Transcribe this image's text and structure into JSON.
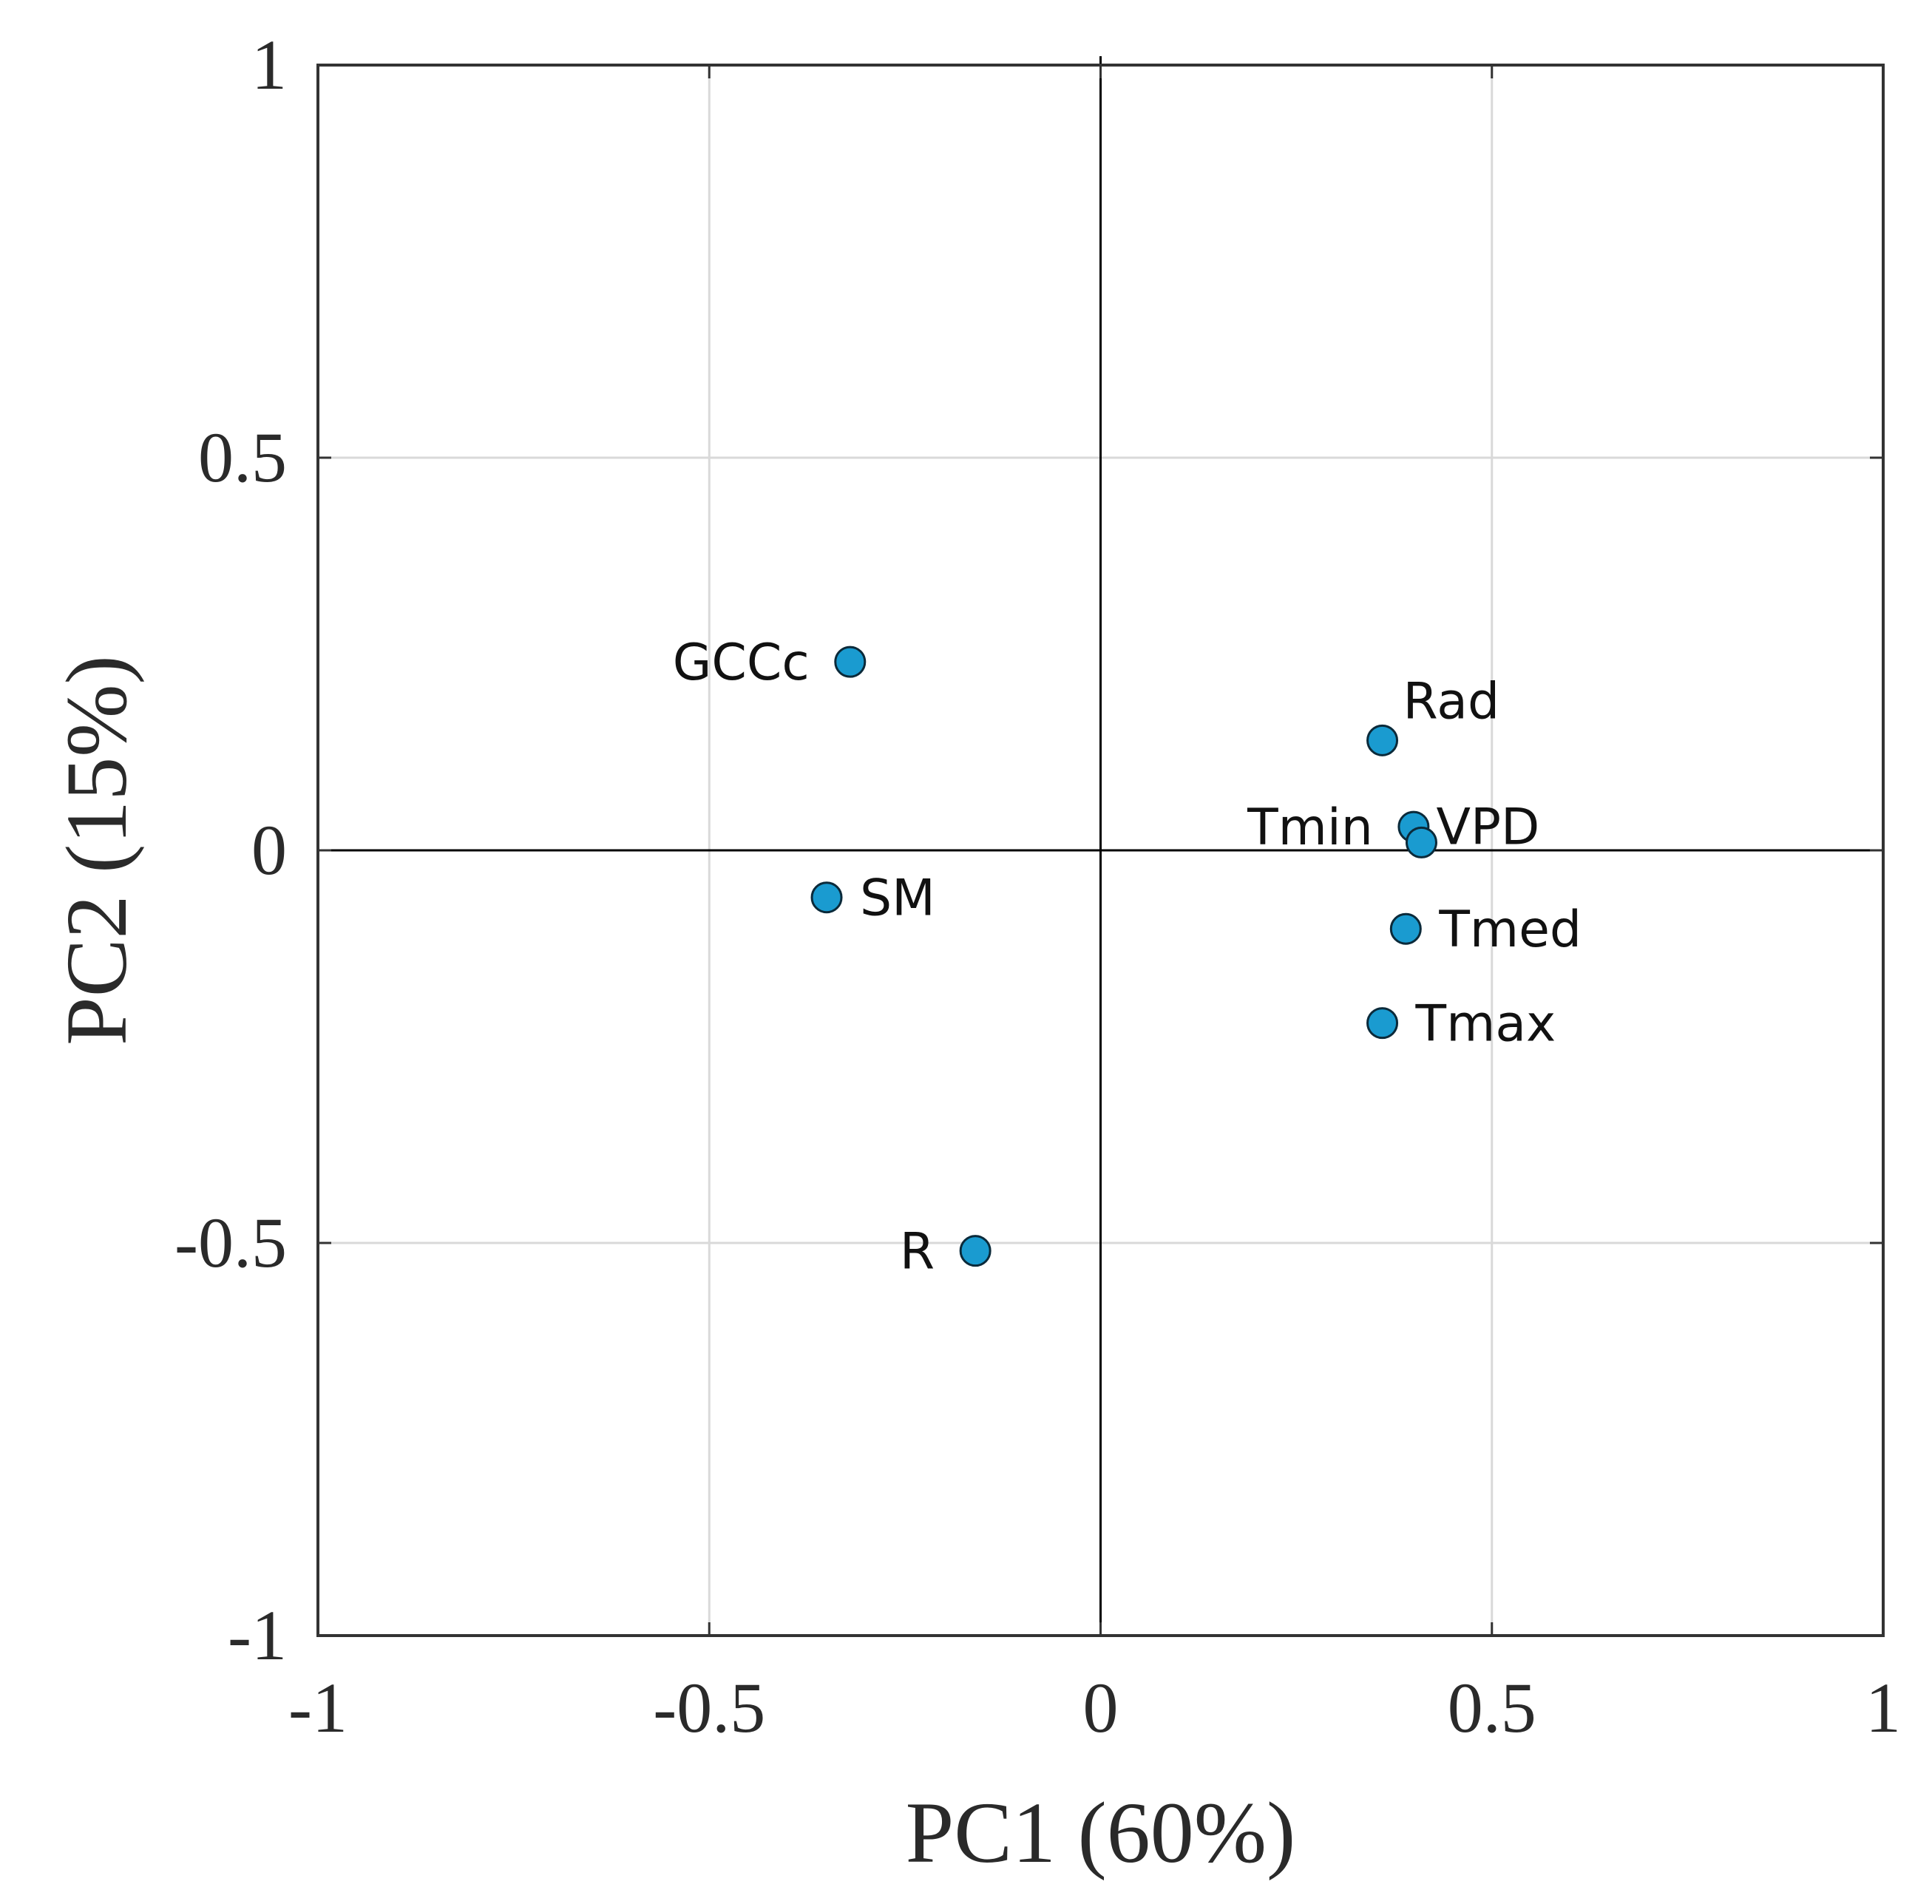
{
  "colors": {
    "marker": "#1a9bd0",
    "marker_edge": "#0b2a3a"
  },
  "chart_data": {
    "type": "scatter",
    "title": "",
    "xlabel": "PC1 (60%)",
    "ylabel": "PC2 (15%)",
    "xlim": [
      -1,
      1
    ],
    "ylim": [
      -1,
      1
    ],
    "grid": true,
    "xticks": [
      -1,
      -0.5,
      0,
      0.5,
      1
    ],
    "xtick_labels": [
      "-1",
      "-0.5",
      "0",
      "0.5",
      "1"
    ],
    "yticks": [
      -1,
      -0.5,
      0,
      0.5,
      1
    ],
    "ytick_labels": [
      "-1",
      "-0.5",
      "0",
      "0.5",
      "1"
    ],
    "points": [
      {
        "label": "GCCc",
        "x": -0.32,
        "y": 0.24,
        "label_side": "left"
      },
      {
        "label": "SM",
        "x": -0.35,
        "y": -0.06,
        "label_side": "right"
      },
      {
        "label": "R",
        "x": -0.16,
        "y": -0.51,
        "label_side": "left"
      },
      {
        "label": "Rad",
        "x": 0.36,
        "y": 0.14,
        "label_side": "upper-right"
      },
      {
        "label": "Tmin",
        "x": 0.4,
        "y": 0.03,
        "label_side": "left"
      },
      {
        "label": "VPD",
        "x": 0.41,
        "y": 0.01,
        "label_side": "right"
      },
      {
        "label": "Tmed",
        "x": 0.39,
        "y": -0.1,
        "label_side": "right"
      },
      {
        "label": "Tmax",
        "x": 0.36,
        "y": -0.22,
        "label_side": "right"
      }
    ]
  }
}
